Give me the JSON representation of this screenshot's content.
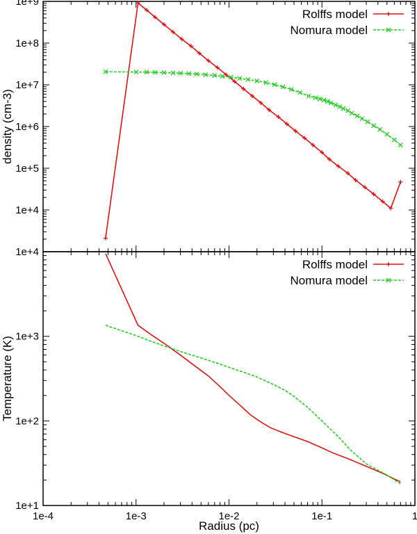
{
  "chart_data": [
    {
      "id": "density",
      "type": "line",
      "xscale": "log",
      "yscale": "log",
      "xlim": [
        0.0001,
        1
      ],
      "ylim": [
        1000,
        1000000000
      ],
      "xlabel": "",
      "ylabel": "density (cm-3)",
      "xticks": [],
      "yticks": [
        {
          "value": 10000,
          "label": "1e+4"
        },
        {
          "value": 100000,
          "label": "1e+5"
        },
        {
          "value": 1000000,
          "label": "1e+6"
        },
        {
          "value": 10000000,
          "label": "1e+7"
        },
        {
          "value": 100000000,
          "label": "1e+8"
        },
        {
          "value": 1000000000,
          "label": "1e+9"
        }
      ],
      "legend_position": "top-right",
      "series": [
        {
          "name": "Rolffs model",
          "color": "#dd1111",
          "dash": "solid",
          "marker": "plus",
          "x": [
            0.00047,
            0.00105,
            0.0013,
            0.0016,
            0.002,
            0.0025,
            0.0031,
            0.0039,
            0.0048,
            0.006,
            0.0075,
            0.0093,
            0.0115,
            0.0143,
            0.0178,
            0.022,
            0.027,
            0.034,
            0.042,
            0.052,
            0.065,
            0.08,
            0.1,
            0.12,
            0.15,
            0.19,
            0.23,
            0.29,
            0.36,
            0.45,
            0.55,
            0.7
          ],
          "y": [
            2100,
            920000000,
            620000000,
            420000000,
            280000000,
            185000000,
            125000000,
            85000000,
            57000000,
            38000000,
            26000000,
            17500000,
            12000000,
            8000000,
            5400000,
            3700000,
            2500000,
            1700000,
            1150000,
            780000,
            530000,
            360000,
            240000,
            165000,
            112000,
            76000,
            52000,
            35000,
            24000,
            16000,
            11000,
            47000
          ]
        },
        {
          "name": "Nomura model",
          "color": "#22cc22",
          "dash": "dashed",
          "marker": "cross",
          "x": [
            0.00047,
            0.001,
            0.0013,
            0.0016,
            0.002,
            0.0025,
            0.003,
            0.0037,
            0.0045,
            0.0056,
            0.007,
            0.0085,
            0.0105,
            0.013,
            0.016,
            0.02,
            0.025,
            0.031,
            0.038,
            0.047,
            0.058,
            0.072,
            0.085,
            0.095,
            0.105,
            0.115,
            0.125,
            0.14,
            0.155,
            0.17,
            0.19,
            0.21,
            0.24,
            0.27,
            0.31,
            0.36,
            0.42,
            0.5,
            0.6,
            0.7
          ],
          "y": [
            20500000,
            20300000,
            20100000,
            19900000,
            19600000,
            19300000,
            19000000,
            18600000,
            18100000,
            17500000,
            16800000,
            16000000,
            15200000,
            14300000,
            13400000,
            12400000,
            11300000,
            10100000,
            8900000,
            7700000,
            6500000,
            5400000,
            4900000,
            4600000,
            4300000,
            4000000,
            3700000,
            3300000,
            3000000,
            2700000,
            2400000,
            2100000,
            1800000,
            1550000,
            1300000,
            1050000,
            850000,
            650000,
            480000,
            360000
          ]
        }
      ]
    },
    {
      "id": "temperature",
      "type": "line",
      "xscale": "log",
      "yscale": "log",
      "xlim": [
        0.0001,
        1
      ],
      "ylim": [
        10,
        10000
      ],
      "xlabel": "Radius (pc)",
      "ylabel": "Temperature (K)",
      "xticks": [
        {
          "value": 0.0001,
          "label": "1e-4"
        },
        {
          "value": 0.001,
          "label": "1e-3"
        },
        {
          "value": 0.01,
          "label": "1e-2"
        },
        {
          "value": 0.1,
          "label": "1e-1"
        },
        {
          "value": 1,
          "label": "1"
        }
      ],
      "yticks": [
        {
          "value": 10,
          "label": "1e+1"
        },
        {
          "value": 100,
          "label": "1e+2"
        },
        {
          "value": 1000,
          "label": "1e+3"
        },
        {
          "value": 10000,
          "label": "1e+4"
        }
      ],
      "legend_position": "top-right",
      "series": [
        {
          "name": "Rolffs model",
          "color": "#dd1111",
          "dash": "solid",
          "marker": "plus",
          "x": [
            0.00047,
            0.00105,
            0.0015,
            0.0022,
            0.003,
            0.0045,
            0.006,
            0.008,
            0.01,
            0.013,
            0.017,
            0.022,
            0.028,
            0.035,
            0.05,
            0.07,
            0.1,
            0.13,
            0.2,
            0.3,
            0.45,
            0.7
          ],
          "y": [
            9500,
            1350,
            1020,
            770,
            600,
            430,
            340,
            255,
            200,
            155,
            118,
            97,
            83,
            75,
            65,
            57,
            48,
            42,
            35,
            29,
            24,
            19
          ]
        },
        {
          "name": "Nomura model",
          "color": "#22cc22",
          "dash": "dashed",
          "marker": "cross",
          "x": [
            0.00047,
            0.001,
            0.0015,
            0.002,
            0.003,
            0.004,
            0.006,
            0.008,
            0.01,
            0.015,
            0.02,
            0.03,
            0.04,
            0.05,
            0.07,
            0.1,
            0.15,
            0.2,
            0.3,
            0.5,
            0.7
          ],
          "y": [
            1350,
            1020,
            860,
            770,
            660,
            600,
            520,
            470,
            430,
            370,
            330,
            270,
            230,
            195,
            145,
            100,
            65,
            46,
            31,
            23,
            18
          ]
        }
      ]
    }
  ]
}
